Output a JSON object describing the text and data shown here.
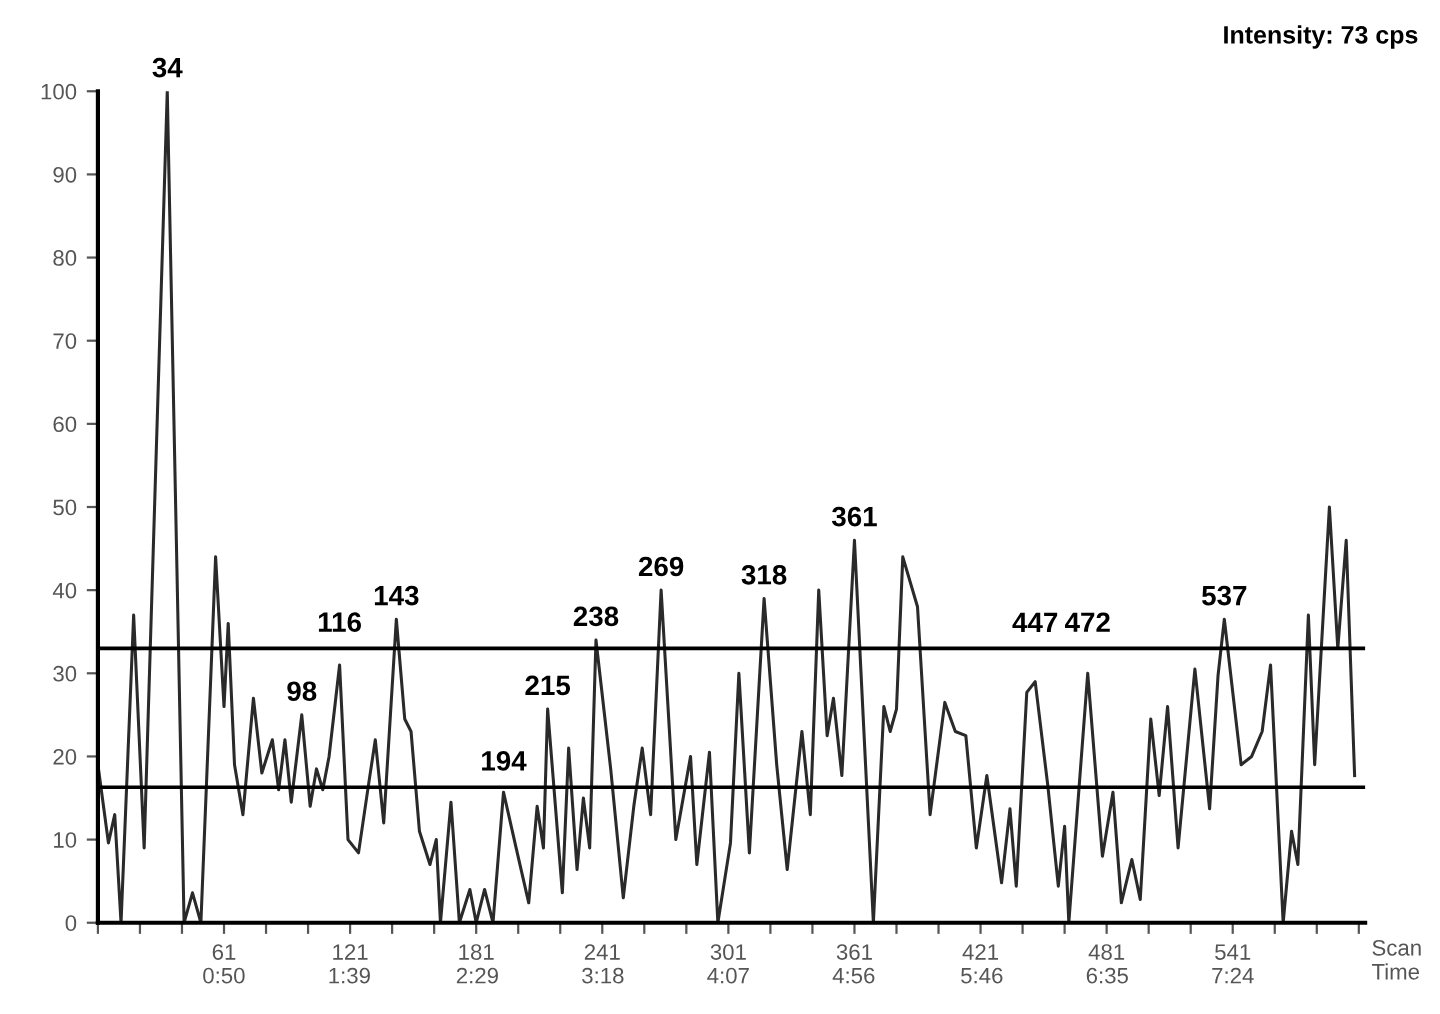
{
  "chart_data": {
    "type": "line",
    "xlabel": "Scan\nTime",
    "series": [
      {
        "color": "#2a2a2a",
        "x": [
          1,
          6,
          9,
          12,
          18,
          23,
          34,
          42,
          46,
          50,
          57,
          61,
          63,
          66,
          70,
          75,
          79,
          84,
          87,
          90,
          93,
          98,
          102,
          105,
          108,
          111,
          116,
          120,
          125,
          130,
          133,
          137,
          143,
          147,
          150,
          154,
          159,
          162,
          164,
          169,
          173,
          178,
          181,
          185,
          189,
          194,
          200,
          206,
          210,
          213,
          215,
          222,
          225,
          229,
          232,
          235,
          238,
          245,
          251,
          256,
          260,
          264,
          269,
          276,
          283,
          286,
          292,
          296,
          302,
          306,
          311,
          318,
          324,
          329,
          336,
          340,
          344,
          348,
          351,
          355,
          361,
          370,
          375,
          378,
          381,
          384,
          391,
          397,
          404,
          409,
          414,
          419,
          424,
          431,
          435,
          438,
          443,
          447,
          453,
          458,
          461,
          463,
          472,
          479,
          484,
          488,
          493,
          497,
          502,
          506,
          510,
          515,
          523,
          530,
          534,
          537,
          545,
          550,
          555,
          559,
          565,
          569,
          572,
          577,
          580,
          587,
          591,
          595,
          599
        ],
        "values": [
          19,
          9.6,
          13,
          0,
          37,
          9,
          100,
          0,
          3.6,
          0,
          44,
          26,
          36,
          19,
          13,
          27,
          18,
          22,
          16,
          22,
          14.5,
          25,
          14,
          18.5,
          16,
          20,
          31,
          10,
          8.4,
          17,
          22,
          12,
          36.5,
          24.5,
          23,
          11,
          7,
          10,
          0,
          14.5,
          0,
          4,
          0,
          4,
          0,
          15.7,
          9,
          2.4,
          14,
          9,
          25.7,
          3.6,
          21,
          6.4,
          15,
          9,
          34,
          18.5,
          3,
          14,
          21,
          13,
          40,
          10,
          20,
          7,
          20.5,
          0,
          9.6,
          30,
          8.4,
          39,
          19,
          6.4,
          23,
          13,
          40,
          22.5,
          27,
          17.7,
          46,
          0,
          26,
          23,
          25.7,
          44,
          38,
          13,
          26.5,
          23,
          22.5,
          9,
          17.7,
          4.8,
          13.7,
          4.4,
          27.7,
          29,
          16.5,
          4.4,
          11.6,
          0,
          30,
          8,
          15.7,
          2.4,
          7.6,
          2.8,
          24.5,
          15.3,
          26,
          9,
          30.5,
          13.7,
          29.7,
          36.5,
          19,
          20,
          23,
          31,
          0,
          11,
          7,
          37,
          19,
          50,
          33,
          46,
          17.7
        ]
      }
    ],
    "xlim": [
      1,
      604
    ],
    "xticks": [
      {
        "value": 1,
        "label": null
      },
      {
        "value": 21,
        "label": null
      },
      {
        "value": 41,
        "label": null
      },
      61,
      {
        "value": 81,
        "label": null
      },
      {
        "value": 101,
        "label": null
      },
      121,
      {
        "value": 141,
        "label": null
      },
      {
        "value": 161,
        "label": null
      },
      181,
      {
        "value": 201,
        "label": null
      },
      {
        "value": 221,
        "label": null
      },
      241,
      {
        "value": 261,
        "label": null
      },
      {
        "value": 281,
        "label": null
      },
      301,
      {
        "value": 321,
        "label": null
      },
      {
        "value": 341,
        "label": null
      },
      361,
      {
        "value": 381,
        "label": null
      },
      {
        "value": 401,
        "label": null
      },
      421,
      {
        "value": 441,
        "label": null
      },
      {
        "value": 461,
        "label": null
      },
      481,
      {
        "value": 501,
        "label": null
      },
      {
        "value": 521,
        "label": null
      },
      541,
      {
        "value": 561,
        "label": null
      },
      {
        "value": 581,
        "label": null
      },
      {
        "value": 601,
        "label": null
      }
    ],
    "x2lim": [
      0.8,
      495.7
    ],
    "x2ticks": [
      {
        "value": 50,
        "label": "0:50"
      },
      {
        "value": 99,
        "label": "1:39"
      },
      {
        "value": 149,
        "label": "2:29"
      },
      {
        "value": 198,
        "label": "3:18"
      },
      {
        "value": 247,
        "label": "4:07"
      },
      {
        "value": 296,
        "label": "4:56"
      },
      {
        "value": 346,
        "label": "5:46"
      },
      {
        "value": 395,
        "label": "6:35"
      },
      {
        "value": 444,
        "label": "7:24"
      }
    ],
    "ylim": [
      0,
      100
    ],
    "yticks": [
      0,
      10,
      20,
      30,
      40,
      50,
      60,
      70,
      80,
      90,
      100
    ],
    "ref_lines": [
      {
        "axis": "y",
        "value": 33,
        "color": "#000000"
      },
      {
        "axis": "y",
        "value": 16.3,
        "color": "#000000"
      }
    ],
    "grid": false,
    "annotations": [
      "Intensity: 73 cps",
      {
        "text": "34",
        "x": 34,
        "y": 100
      },
      {
        "text": "98",
        "x": 98,
        "y": 25
      },
      {
        "text": "116",
        "x": 116,
        "y": 31
      },
      {
        "text": "143",
        "x": 143,
        "y": 36.5
      },
      {
        "text": "194",
        "x": 194,
        "y": 15.7
      },
      {
        "text": "215",
        "x": 215,
        "y": 25.7
      },
      {
        "text": "238",
        "x": 238,
        "y": 34
      },
      {
        "text": "269",
        "x": 269,
        "y": 40
      },
      {
        "text": "318",
        "x": 318,
        "y": 39
      },
      {
        "text": "361",
        "x": 361,
        "y": 46
      },
      {
        "text": "447",
        "x": 447,
        "y": 29
      },
      {
        "text": "472",
        "x": 472,
        "y": 30
      },
      {
        "text": "537",
        "x": 537,
        "y": 36.5
      }
    ]
  }
}
